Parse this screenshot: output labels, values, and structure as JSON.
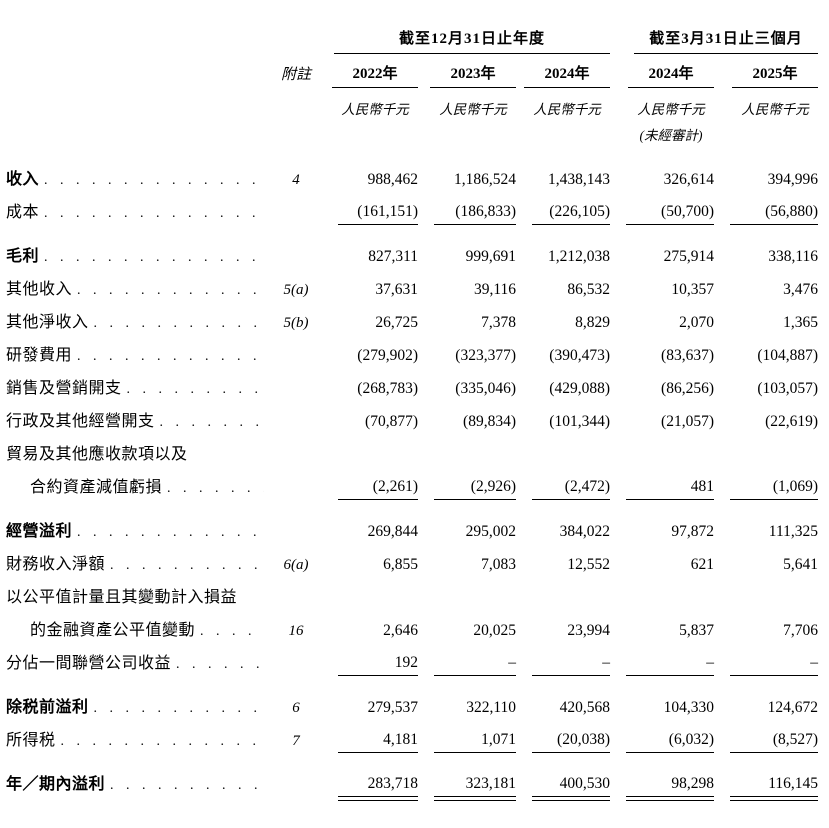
{
  "header": {
    "note_col_label": "附註",
    "groups": [
      {
        "title": "截至12月31日止年度",
        "col_span": 3
      },
      {
        "title": "截至3月31日止三個月",
        "col_span": 2
      }
    ],
    "columns": [
      {
        "year": "2022年",
        "unit": "人民幣千元",
        "sub": ""
      },
      {
        "year": "2023年",
        "unit": "人民幣千元",
        "sub": ""
      },
      {
        "year": "2024年",
        "unit": "人民幣千元",
        "sub": ""
      },
      {
        "year": "2024年",
        "unit": "人民幣千元",
        "sub": "(未經審計)"
      },
      {
        "year": "2025年",
        "unit": "人民幣千元",
        "sub": ""
      }
    ]
  },
  "table": {
    "rows": [
      {
        "key": "revenue",
        "label": "收入",
        "dots": true,
        "note": "4",
        "bold": true,
        "values": [
          "988,462",
          "1,186,524",
          "1,438,143",
          "326,614",
          "394,996"
        ],
        "rule": "none"
      },
      {
        "key": "cost",
        "label": "成本",
        "dots": true,
        "note": "",
        "bold": false,
        "values": [
          "(161,151)",
          "(186,833)",
          "(226,105)",
          "(50,700)",
          "(56,880)"
        ],
        "rule": "single"
      },
      {
        "key": "gross-profit",
        "label": "毛利",
        "dots": true,
        "note": "",
        "bold": true,
        "gap_top": true,
        "values": [
          "827,311",
          "999,691",
          "1,212,038",
          "275,914",
          "338,116"
        ],
        "rule": "none"
      },
      {
        "key": "other-income",
        "label": "其他收入",
        "dots": true,
        "note": "5(a)",
        "bold": false,
        "values": [
          "37,631",
          "39,116",
          "86,532",
          "10,357",
          "3,476"
        ],
        "rule": "none"
      },
      {
        "key": "other-net-income",
        "label": "其他淨收入",
        "dots": true,
        "note": "5(b)",
        "bold": false,
        "values": [
          "26,725",
          "7,378",
          "8,829",
          "2,070",
          "1,365"
        ],
        "rule": "none"
      },
      {
        "key": "rd-expenses",
        "label": "研發費用",
        "dots": true,
        "note": "",
        "bold": false,
        "values": [
          "(279,902)",
          "(323,377)",
          "(390,473)",
          "(83,637)",
          "(104,887)"
        ],
        "rule": "none"
      },
      {
        "key": "selling-marketing",
        "label": "銷售及營銷開支",
        "dots": true,
        "note": "",
        "bold": false,
        "values": [
          "(268,783)",
          "(335,046)",
          "(429,088)",
          "(86,256)",
          "(103,057)"
        ],
        "rule": "none"
      },
      {
        "key": "admin-other-opex",
        "label": "行政及其他經營開支",
        "dots": true,
        "note": "",
        "bold": false,
        "values": [
          "(70,877)",
          "(89,834)",
          "(101,344)",
          "(21,057)",
          "(22,619)"
        ],
        "rule": "none"
      },
      {
        "key": "impairment-caption",
        "label": "貿易及其他應收款項以及",
        "dots": false,
        "note": "",
        "bold": false,
        "values": null,
        "rule": "none"
      },
      {
        "key": "impairment",
        "label": "合約資產減值虧損",
        "indent": true,
        "dots": true,
        "note": "",
        "bold": false,
        "values": [
          "(2,261)",
          "(2,926)",
          "(2,472)",
          "481",
          "(1,069)"
        ],
        "rule": "single"
      },
      {
        "key": "operating-profit",
        "label": "經營溢利",
        "dots": true,
        "note": "",
        "bold": true,
        "gap_top": true,
        "values": [
          "269,844",
          "295,002",
          "384,022",
          "97,872",
          "111,325"
        ],
        "rule": "none"
      },
      {
        "key": "net-finance-income",
        "label": "財務收入淨額",
        "dots": true,
        "note": "6(a)",
        "bold": false,
        "values": [
          "6,855",
          "7,083",
          "12,552",
          "621",
          "5,641"
        ],
        "rule": "none"
      },
      {
        "key": "fvtpl-caption",
        "label": "以公平值計量且其變動計入損益",
        "dots": false,
        "note": "",
        "bold": false,
        "values": null,
        "rule": "none"
      },
      {
        "key": "fvtpl-change",
        "label": "的金融資產公平值變動",
        "indent": true,
        "dots": true,
        "note": "16",
        "bold": false,
        "values": [
          "2,646",
          "20,025",
          "23,994",
          "5,837",
          "7,706"
        ],
        "rule": "none"
      },
      {
        "key": "share-of-associate",
        "label": "分佔一間聯營公司收益",
        "dots": true,
        "note": "",
        "bold": false,
        "values": [
          "192",
          "–",
          "–",
          "–",
          "–"
        ],
        "rule": "single"
      },
      {
        "key": "profit-before-tax",
        "label": "除税前溢利",
        "dots": true,
        "note": "6",
        "bold": true,
        "gap_top": true,
        "values": [
          "279,537",
          "322,110",
          "420,568",
          "104,330",
          "124,672"
        ],
        "rule": "none"
      },
      {
        "key": "income-tax",
        "label": "所得税",
        "dots": true,
        "note": "7",
        "bold": false,
        "values": [
          "4,181",
          "1,071",
          "(20,038)",
          "(6,032)",
          "(8,527)"
        ],
        "rule": "single"
      },
      {
        "key": "profit-for-period",
        "label": "年／期內溢利",
        "dots": true,
        "note": "",
        "bold": true,
        "gap_top": true,
        "values": [
          "283,718",
          "323,181",
          "400,530",
          "98,298",
          "116,145"
        ],
        "rule": "double"
      }
    ]
  }
}
